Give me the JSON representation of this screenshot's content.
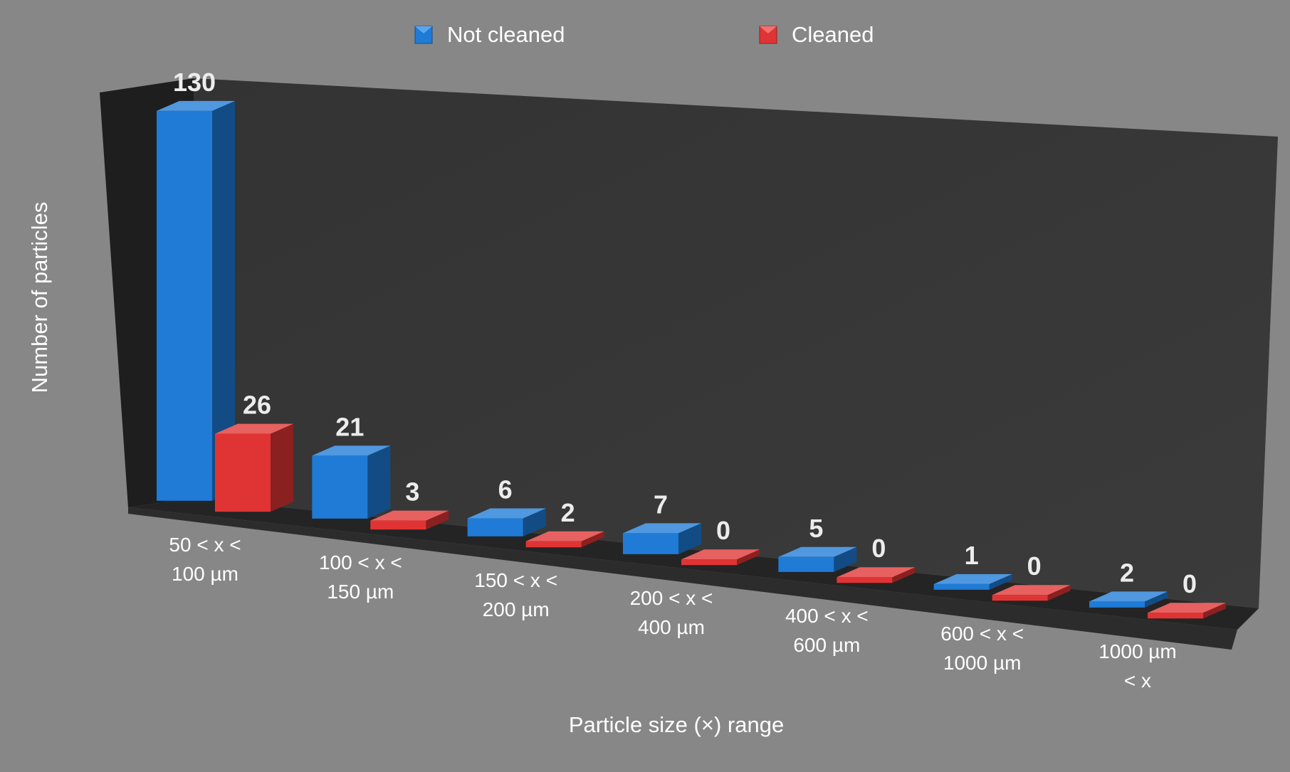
{
  "chart_data": {
    "type": "bar",
    "title": "",
    "xlabel": "Particle size (×) range",
    "ylabel": "Number of particles",
    "categories": [
      [
        "50 < x <",
        "100 µm"
      ],
      [
        "100 < x <",
        "150 µm"
      ],
      [
        "150 < x <",
        "200 µm"
      ],
      [
        "200 < x <",
        "400 µm"
      ],
      [
        "400 < x <",
        "600 µm"
      ],
      [
        "600 < x <",
        "1000 µm"
      ],
      [
        "1000 µm",
        "< x"
      ]
    ],
    "series": [
      {
        "name": "Not cleaned",
        "values": [
          130,
          21,
          6,
          7,
          5,
          1,
          2
        ],
        "color": "#1f7bd6"
      },
      {
        "name": "Cleaned",
        "values": [
          26,
          3,
          2,
          0,
          0,
          0,
          0
        ],
        "color": "#e03434"
      }
    ],
    "ylim": [
      0,
      130
    ],
    "grid": false,
    "legend_position": "top",
    "style": "3d-clustered-column",
    "background_color": "#878787",
    "plot_wall_color": "#363636"
  }
}
